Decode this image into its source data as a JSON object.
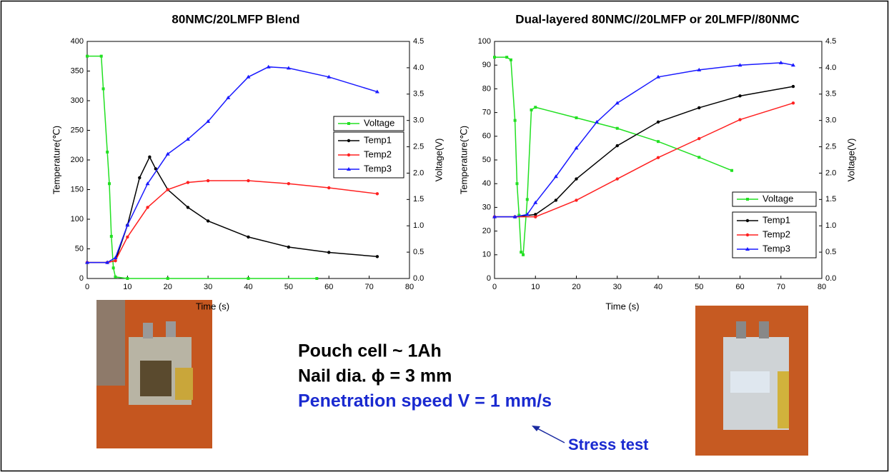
{
  "chart_data": [
    {
      "type": "line",
      "title": "80NMC/20LMFP Blend",
      "x_label": "Time (s)",
      "y_label": "Temperature(℃)",
      "y2_label": "Voltage(V)",
      "xlim": [
        0,
        80
      ],
      "xticks": [
        0,
        10,
        20,
        30,
        40,
        50,
        60,
        70,
        80
      ],
      "ylim": [
        0,
        400
      ],
      "yticks": [
        0,
        50,
        100,
        150,
        200,
        250,
        300,
        350,
        400
      ],
      "y2lim": [
        0,
        4.5
      ],
      "y2ticks": [
        {
          "value": 0,
          "label": "0.0"
        },
        0.5,
        {
          "value": 1,
          "label": "1.0"
        },
        1.5,
        {
          "value": 2,
          "label": "2.0"
        },
        2.5,
        {
          "value": 3,
          "label": "3.0"
        },
        3.5,
        {
          "value": 4,
          "label": "4.0"
        },
        4.5
      ],
      "legend": "right",
      "series": [
        {
          "name": "Voltage",
          "color": "#22e022",
          "axis": "y2",
          "x": [
            0,
            3.5,
            4,
            5,
            5.5,
            6,
            6.5,
            7,
            10,
            20,
            40,
            57
          ],
          "values": [
            4.22,
            4.22,
            3.6,
            2.4,
            1.8,
            0.8,
            0.2,
            0.03,
            0,
            0,
            0,
            0
          ]
        },
        {
          "name": "Temp1",
          "color": "#000000",
          "x": [
            0,
            5,
            7,
            10,
            13,
            15.5,
            17,
            20,
            25,
            30,
            40,
            50,
            60,
            72
          ],
          "values": [
            27,
            27,
            30,
            90,
            170,
            205,
            185,
            150,
            120,
            97,
            70,
            53,
            44,
            37
          ]
        },
        {
          "name": "Temp2",
          "color": "#ff2020",
          "x": [
            0,
            5,
            7,
            10,
            15,
            20,
            25,
            30,
            40,
            50,
            60,
            72
          ],
          "values": [
            27,
            27,
            30,
            70,
            120,
            150,
            162,
            165,
            165,
            160,
            153,
            143
          ]
        },
        {
          "name": "Temp3",
          "color": "#1a1aff",
          "x": [
            0,
            5,
            7,
            10,
            15,
            20,
            25,
            30,
            35,
            40,
            45,
            50,
            60,
            72
          ],
          "values": [
            27,
            27,
            35,
            90,
            160,
            210,
            235,
            265,
            305,
            340,
            357,
            355,
            340,
            315
          ]
        }
      ]
    },
    {
      "type": "line",
      "title": "Dual-layered 80NMC//20LMFP or 20LMFP//80NMC",
      "x_label": "Time (s)",
      "y_label": "Temperature(℃)",
      "y2_label": "Voltage(V)",
      "xlim": [
        0,
        80
      ],
      "xticks": [
        0,
        10,
        20,
        30,
        40,
        50,
        60,
        70,
        80
      ],
      "ylim": [
        0,
        100
      ],
      "yticks": [
        0,
        10,
        20,
        30,
        40,
        50,
        60,
        70,
        80,
        90,
        100
      ],
      "y2lim": [
        0,
        4.5
      ],
      "y2ticks": [
        {
          "value": 0,
          "label": "0.0"
        },
        0.5,
        {
          "value": 1,
          "label": "1.0"
        },
        1.5,
        {
          "value": 2,
          "label": "2.0"
        },
        2.5,
        {
          "value": 3,
          "label": "3.0"
        },
        3.5,
        {
          "value": 4,
          "label": "4.0"
        },
        4.5
      ],
      "legend": "right",
      "series": [
        {
          "name": "Voltage",
          "color": "#22e022",
          "axis": "y2",
          "x": [
            0,
            3,
            4,
            5,
            5.5,
            6,
            6.5,
            7,
            8,
            9,
            10,
            20,
            30,
            40,
            50,
            58
          ],
          "values": [
            4.2,
            4.2,
            4.15,
            3.0,
            1.8,
            1.2,
            0.5,
            0.45,
            1.5,
            3.2,
            3.25,
            3.05,
            2.85,
            2.6,
            2.3,
            2.05
          ]
        },
        {
          "name": "Temp1",
          "color": "#000000",
          "x": [
            0,
            5,
            10,
            15,
            20,
            30,
            40,
            50,
            60,
            73
          ],
          "values": [
            26,
            26,
            27,
            33,
            42,
            56,
            66,
            72,
            77,
            81
          ]
        },
        {
          "name": "Temp2",
          "color": "#ff2020",
          "x": [
            0,
            5,
            10,
            20,
            30,
            40,
            50,
            60,
            73
          ],
          "values": [
            26,
            26,
            26,
            33,
            42,
            51,
            59,
            67,
            74
          ]
        },
        {
          "name": "Temp3",
          "color": "#1a1aff",
          "x": [
            0,
            5,
            8,
            10,
            15,
            20,
            25,
            30,
            40,
            50,
            60,
            70,
            73
          ],
          "values": [
            26,
            26,
            27,
            32,
            43,
            55,
            66,
            74,
            85,
            88,
            90,
            91,
            90
          ]
        }
      ]
    }
  ],
  "notes": {
    "lines": [
      "Pouch cell ~ 1Ah",
      "Nail dia. ϕ = 3 mm",
      "Penetration speed V = 1 mm/s"
    ],
    "callout": "Stress test"
  }
}
